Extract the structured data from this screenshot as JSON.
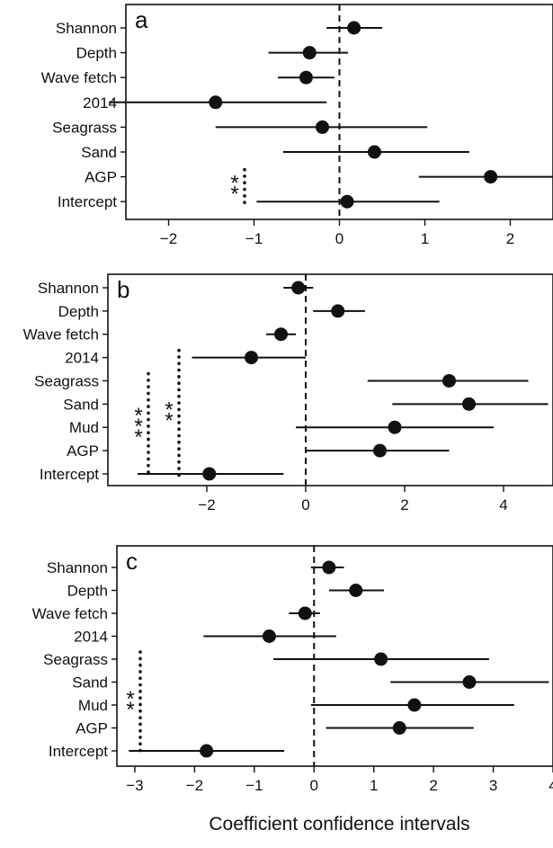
{
  "xlabel": "Coefficient confidence intervals",
  "chart_data": [
    {
      "type": "scatter",
      "panel_label": "a",
      "xlim": [
        -2.5,
        2.5
      ],
      "x_ticks": [
        -2,
        -1,
        0,
        1,
        2
      ],
      "x_tick_labels": [
        "−2",
        "−1",
        "0",
        "1",
        "2"
      ],
      "reference_line_x": 0,
      "categories": [
        "Shannon",
        "Depth",
        "Wave fetch",
        "2014",
        "Seagrass",
        "Sand",
        "AGP",
        "Intercept"
      ],
      "estimates": [
        0.17,
        -0.35,
        -0.39,
        -1.45,
        -0.2,
        0.41,
        1.77,
        0.09
      ],
      "ci_lower": [
        -0.15,
        -0.83,
        -0.72,
        -2.7,
        -1.45,
        -0.66,
        0.93,
        -0.97
      ],
      "ci_upper": [
        0.5,
        0.1,
        -0.06,
        -0.15,
        1.03,
        1.52,
        2.62,
        1.17
      ],
      "significance_brackets": [
        {
          "stars": "**",
          "from": "AGP",
          "to": "Intercept"
        }
      ]
    },
    {
      "type": "scatter",
      "panel_label": "b",
      "xlim": [
        -4,
        5
      ],
      "x_ticks": [
        -2,
        0,
        2,
        4
      ],
      "x_tick_labels": [
        "−2",
        "0",
        "2",
        "4"
      ],
      "reference_line_x": 0,
      "categories": [
        "Shannon",
        "Depth",
        "Wave fetch",
        "2014",
        "Seagrass",
        "Sand",
        "Mud",
        "AGP",
        "Intercept"
      ],
      "estimates": [
        -0.15,
        0.65,
        -0.5,
        -1.1,
        2.9,
        3.3,
        1.8,
        1.5,
        -1.95
      ],
      "ci_lower": [
        -0.45,
        0.15,
        -0.8,
        -2.3,
        1.25,
        1.75,
        -0.2,
        0.0,
        -3.4
      ],
      "ci_upper": [
        0.15,
        1.2,
        -0.2,
        0.0,
        4.5,
        4.9,
        3.8,
        2.9,
        -0.45
      ],
      "significance_brackets": [
        {
          "stars": "***",
          "from": "Seagrass",
          "to": "Intercept"
        },
        {
          "stars": "**",
          "from": "2014",
          "to": "Intercept"
        }
      ]
    },
    {
      "type": "scatter",
      "panel_label": "c",
      "xlim": [
        -3.3,
        4.0
      ],
      "x_ticks": [
        -3,
        -2,
        -1,
        0,
        1,
        2,
        3,
        4
      ],
      "x_tick_labels": [
        "−3",
        "−2",
        "−1",
        "0",
        "1",
        "2",
        "3",
        "4"
      ],
      "reference_line_x": 0,
      "categories": [
        "Shannon",
        "Depth",
        "Wave fetch",
        "2014",
        "Seagrass",
        "Sand",
        "Mud",
        "AGP",
        "Intercept"
      ],
      "estimates": [
        0.25,
        0.7,
        -0.15,
        -0.75,
        1.12,
        2.6,
        1.68,
        1.43,
        -1.8
      ],
      "ci_lower": [
        -0.05,
        0.25,
        -0.42,
        -1.85,
        -0.68,
        1.28,
        -0.05,
        0.2,
        -3.1
      ],
      "ci_upper": [
        0.5,
        1.17,
        0.1,
        0.37,
        2.93,
        3.93,
        3.35,
        2.67,
        -0.5
      ],
      "significance_brackets": [
        {
          "stars": "**",
          "from": "Seagrass",
          "to": "Intercept"
        }
      ]
    }
  ]
}
